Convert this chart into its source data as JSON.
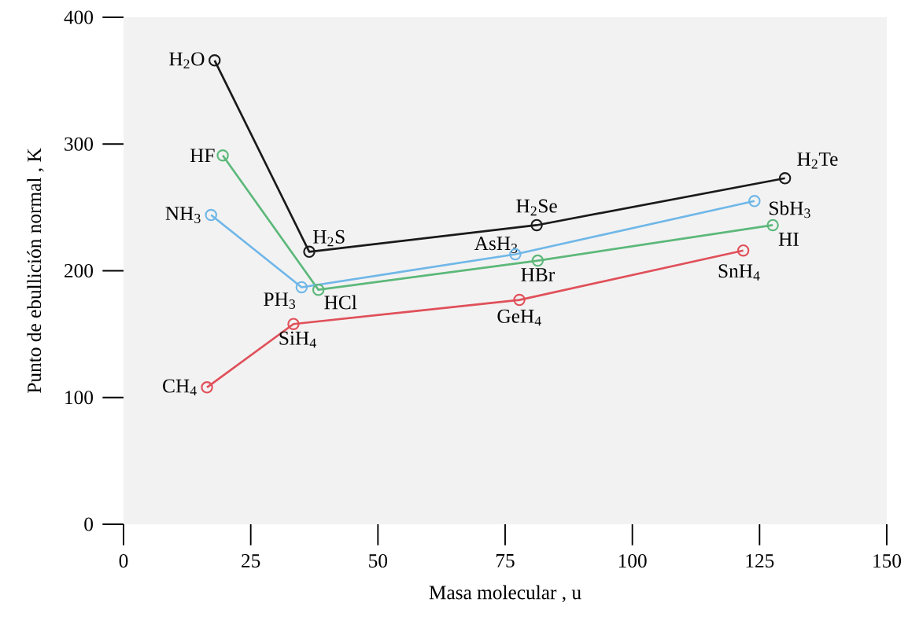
{
  "chart_data": {
    "type": "line",
    "xlabel": "Masa molecular , u",
    "ylabel": "Punto de ebullición normal , K",
    "xlim": [
      0,
      150
    ],
    "ylim": [
      0,
      400
    ],
    "xticks": [
      0,
      25,
      50,
      75,
      100,
      125,
      150
    ],
    "yticks": [
      0,
      100,
      200,
      300,
      400
    ],
    "marker": "circle",
    "series": [
      {
        "color": "#1a1a1a",
        "x": [
          17.9,
          36.5,
          81.2,
          130
        ],
        "values": [
          366,
          215,
          236,
          273
        ]
      },
      {
        "color": "#5cb87a",
        "x": [
          19.5,
          38.3,
          81.4,
          127.6
        ],
        "values": [
          291,
          185,
          208,
          236
        ]
      },
      {
        "color": "#6fb7e8",
        "x": [
          17.2,
          35,
          77,
          124
        ],
        "values": [
          244,
          187,
          213,
          255
        ]
      },
      {
        "color": "#e0505a",
        "x": [
          16.4,
          33.4,
          77.8,
          121.8
        ],
        "values": [
          108,
          158,
          177,
          216
        ]
      }
    ],
    "annotations": [
      {
        "text": "H$_{2}$O",
        "x": 17.9,
        "y": 366
      },
      {
        "text": "H$_{2}$S",
        "x": 36.5,
        "y": 215
      },
      {
        "text": "H$_{2}$Se",
        "x": 81.2,
        "y": 236
      },
      {
        "text": "H$_{2}$Te",
        "x": 130,
        "y": 273
      },
      {
        "text": "HF",
        "x": 19.5,
        "y": 291
      },
      {
        "text": "HCl",
        "x": 38.3,
        "y": 185
      },
      {
        "text": "HBr",
        "x": 81.4,
        "y": 208
      },
      {
        "text": "HI",
        "x": 127.6,
        "y": 236
      },
      {
        "text": "NH$_{3}$",
        "x": 17.2,
        "y": 244
      },
      {
        "text": "PH$_{3}$",
        "x": 35,
        "y": 187
      },
      {
        "text": "AsH$_{3}$",
        "x": 77,
        "y": 213
      },
      {
        "text": "SbH$_{3}$",
        "x": 124,
        "y": 255
      },
      {
        "text": "CH$_{4}$",
        "x": 16.4,
        "y": 108
      },
      {
        "text": "SiH$_{4}$",
        "x": 33.4,
        "y": 158
      },
      {
        "text": "GeH$_{4}$",
        "x": 77.8,
        "y": 177
      },
      {
        "text": "SnH$_{4}$",
        "x": 121.8,
        "y": 216
      }
    ]
  }
}
